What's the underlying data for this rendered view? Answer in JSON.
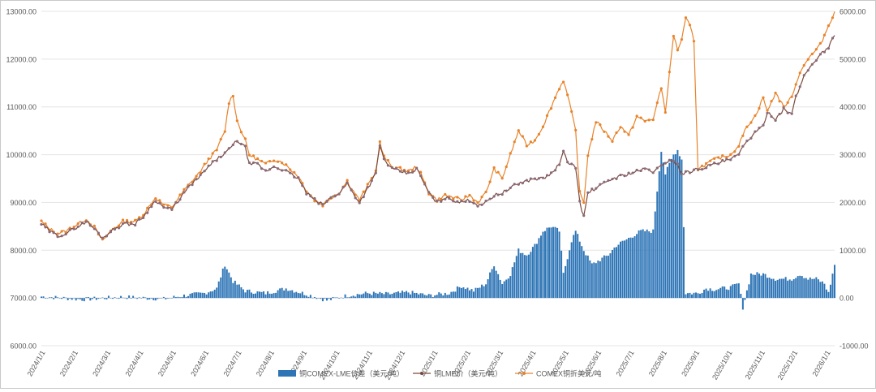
{
  "chart_data": {
    "type": "bar+line",
    "title": "",
    "y_left": {
      "min": 6000,
      "max": 13000,
      "step": 1000,
      "ticks": [
        "6000.00",
        "7000.00",
        "8000.00",
        "9000.00",
        "10000.00",
        "11000.00",
        "12000.00",
        "13000.00"
      ]
    },
    "y_right": {
      "min": -1000,
      "max": 6000,
      "step": 1000,
      "ticks": [
        "-1000.00",
        "0.00",
        "1000.00",
        "2000.00",
        "3000.00",
        "4000.00",
        "5000.00",
        "6000.00"
      ]
    },
    "x_ticks": [
      "2024/1/1",
      "2024/2/1",
      "2024/3/1",
      "2024/4/1",
      "2024/5/1",
      "2024/6/1",
      "2024/7/1",
      "2024/8/1",
      "2024/9/1",
      "2024/10/1",
      "2024/11/1",
      "2024/12/1",
      "2025/1/1",
      "2025/2/1",
      "2025/3/1",
      "2025/4/1",
      "2025/5/1",
      "2025/6/1",
      "2025/7/1",
      "2025/8/1",
      "2025/9/1",
      "2025/10/1",
      "2025/11/1",
      "2025/12/1",
      "2026/1/1"
    ],
    "legend": [
      {
        "name": "铜COMEX-LME价差（美元/吨）",
        "type": "bar",
        "axis": "right",
        "color": "#2e75b6"
      },
      {
        "name": "铜LME价（美元/吨）",
        "type": "line",
        "axis": "left",
        "color": "#7b4a3c"
      },
      {
        "name": "COMEX铜折美元/吨",
        "type": "line",
        "axis": "left",
        "color": "#e8832a"
      }
    ],
    "series_lme_anchors": [
      [
        0,
        8550
      ],
      [
        4,
        8400
      ],
      [
        8,
        8300
      ],
      [
        12,
        8350
      ],
      [
        18,
        8500
      ],
      [
        22,
        8600
      ],
      [
        26,
        8450
      ],
      [
        30,
        8250
      ],
      [
        34,
        8400
      ],
      [
        40,
        8550
      ],
      [
        46,
        8550
      ],
      [
        50,
        8700
      ],
      [
        56,
        9050
      ],
      [
        60,
        8900
      ],
      [
        64,
        8850
      ],
      [
        70,
        9200
      ],
      [
        74,
        9400
      ],
      [
        78,
        9550
      ],
      [
        82,
        9750
      ],
      [
        86,
        9900
      ],
      [
        92,
        10100
      ],
      [
        96,
        10300
      ],
      [
        100,
        10150
      ],
      [
        102,
        9800
      ],
      [
        106,
        9800
      ],
      [
        110,
        9650
      ],
      [
        114,
        9750
      ],
      [
        118,
        9700
      ],
      [
        122,
        9600
      ],
      [
        126,
        9500
      ],
      [
        130,
        9200
      ],
      [
        134,
        9050
      ],
      [
        138,
        8950
      ],
      [
        142,
        9100
      ],
      [
        146,
        9200
      ],
      [
        150,
        9400
      ],
      [
        152,
        9250
      ],
      [
        156,
        9000
      ],
      [
        160,
        9300
      ],
      [
        164,
        9600
      ],
      [
        166,
        10200
      ],
      [
        168,
        9900
      ],
      [
        172,
        9700
      ],
      [
        176,
        9650
      ],
      [
        180,
        9600
      ],
      [
        184,
        9700
      ],
      [
        186,
        9550
      ],
      [
        190,
        9200
      ],
      [
        194,
        9000
      ],
      [
        198,
        9100
      ],
      [
        202,
        9050
      ],
      [
        206,
        9000
      ],
      [
        210,
        9050
      ],
      [
        214,
        8950
      ],
      [
        218,
        9000
      ],
      [
        222,
        9150
      ],
      [
        226,
        9200
      ],
      [
        230,
        9300
      ],
      [
        234,
        9400
      ],
      [
        238,
        9450
      ],
      [
        242,
        9500
      ],
      [
        246,
        9500
      ],
      [
        250,
        9600
      ],
      [
        254,
        9800
      ],
      [
        256,
        10050
      ],
      [
        258,
        9850
      ],
      [
        262,
        9750
      ],
      [
        264,
        9000
      ],
      [
        266,
        8700
      ],
      [
        268,
        9200
      ],
      [
        272,
        9300
      ],
      [
        276,
        9400
      ],
      [
        280,
        9500
      ],
      [
        284,
        9550
      ],
      [
        288,
        9600
      ],
      [
        292,
        9650
      ],
      [
        296,
        9700
      ],
      [
        300,
        9650
      ],
      [
        304,
        9750
      ],
      [
        308,
        9900
      ],
      [
        312,
        9800
      ],
      [
        314,
        9600
      ],
      [
        318,
        9650
      ],
      [
        322,
        9700
      ],
      [
        326,
        9750
      ],
      [
        330,
        9800
      ],
      [
        334,
        9850
      ],
      [
        338,
        9900
      ],
      [
        342,
        10000
      ],
      [
        346,
        10300
      ],
      [
        350,
        10450
      ],
      [
        354,
        10600
      ],
      [
        356,
        10900
      ],
      [
        360,
        10750
      ],
      [
        364,
        10950
      ],
      [
        368,
        10850
      ],
      [
        370,
        11200
      ],
      [
        374,
        11650
      ],
      [
        378,
        11900
      ],
      [
        382,
        12100
      ],
      [
        386,
        12250
      ],
      [
        389,
        12500
      ]
    ],
    "series_comex_anchors": [
      [
        0,
        8600
      ],
      [
        4,
        8450
      ],
      [
        8,
        8350
      ],
      [
        12,
        8400
      ],
      [
        18,
        8550
      ],
      [
        22,
        8650
      ],
      [
        26,
        8480
      ],
      [
        30,
        8200
      ],
      [
        34,
        8400
      ],
      [
        40,
        8600
      ],
      [
        46,
        8600
      ],
      [
        50,
        8750
      ],
      [
        56,
        9100
      ],
      [
        60,
        8950
      ],
      [
        64,
        8900
      ],
      [
        70,
        9250
      ],
      [
        74,
        9450
      ],
      [
        78,
        9650
      ],
      [
        82,
        9900
      ],
      [
        86,
        10100
      ],
      [
        90,
        10500
      ],
      [
        92,
        11100
      ],
      [
        94,
        11250
      ],
      [
        96,
        10700
      ],
      [
        100,
        10300
      ],
      [
        102,
        10000
      ],
      [
        106,
        9900
      ],
      [
        110,
        9800
      ],
      [
        114,
        9900
      ],
      [
        118,
        9850
      ],
      [
        122,
        9700
      ],
      [
        126,
        9550
      ],
      [
        130,
        9250
      ],
      [
        134,
        9050
      ],
      [
        138,
        8950
      ],
      [
        142,
        9100
      ],
      [
        146,
        9200
      ],
      [
        150,
        9450
      ],
      [
        152,
        9300
      ],
      [
        156,
        9050
      ],
      [
        160,
        9350
      ],
      [
        164,
        9650
      ],
      [
        166,
        10250
      ],
      [
        168,
        9950
      ],
      [
        172,
        9750
      ],
      [
        176,
        9700
      ],
      [
        180,
        9650
      ],
      [
        184,
        9750
      ],
      [
        186,
        9600
      ],
      [
        190,
        9200
      ],
      [
        194,
        9050
      ],
      [
        198,
        9150
      ],
      [
        202,
        9100
      ],
      [
        206,
        9050
      ],
      [
        210,
        9150
      ],
      [
        214,
        9000
      ],
      [
        218,
        9200
      ],
      [
        222,
        9700
      ],
      [
        226,
        9500
      ],
      [
        230,
        10000
      ],
      [
        234,
        10500
      ],
      [
        238,
        10200
      ],
      [
        242,
        10300
      ],
      [
        246,
        10600
      ],
      [
        250,
        11000
      ],
      [
        254,
        11400
      ],
      [
        256,
        11550
      ],
      [
        258,
        11250
      ],
      [
        262,
        10500
      ],
      [
        264,
        9200
      ],
      [
        266,
        9000
      ],
      [
        268,
        10000
      ],
      [
        272,
        10700
      ],
      [
        276,
        10500
      ],
      [
        280,
        10300
      ],
      [
        284,
        10600
      ],
      [
        288,
        10400
      ],
      [
        292,
        10800
      ],
      [
        296,
        10700
      ],
      [
        300,
        10750
      ],
      [
        304,
        11400
      ],
      [
        306,
        10900
      ],
      [
        310,
        12500
      ],
      [
        312,
        12200
      ],
      [
        314,
        12400
      ],
      [
        316,
        12850
      ],
      [
        318,
        12700
      ],
      [
        320,
        12400
      ],
      [
        322,
        9700
      ],
      [
        326,
        9800
      ],
      [
        330,
        9900
      ],
      [
        334,
        9950
      ],
      [
        338,
        10000
      ],
      [
        342,
        10200
      ],
      [
        346,
        10600
      ],
      [
        350,
        10800
      ],
      [
        354,
        11200
      ],
      [
        356,
        10900
      ],
      [
        360,
        11300
      ],
      [
        364,
        11000
      ],
      [
        368,
        11200
      ],
      [
        370,
        11500
      ],
      [
        374,
        11900
      ],
      [
        378,
        12100
      ],
      [
        382,
        12300
      ],
      [
        386,
        12700
      ],
      [
        389,
        13000
      ]
    ],
    "bars_spread_anchors": [
      [
        0,
        30
      ],
      [
        20,
        -30
      ],
      [
        40,
        20
      ],
      [
        60,
        -20
      ],
      [
        70,
        50
      ],
      [
        80,
        100
      ],
      [
        86,
        200
      ],
      [
        90,
        700
      ],
      [
        94,
        350
      ],
      [
        100,
        150
      ],
      [
        110,
        100
      ],
      [
        120,
        200
      ],
      [
        130,
        80
      ],
      [
        140,
        -50
      ],
      [
        150,
        50
      ],
      [
        160,
        100
      ],
      [
        170,
        80
      ],
      [
        180,
        120
      ],
      [
        190,
        50
      ],
      [
        200,
        100
      ],
      [
        206,
        250
      ],
      [
        212,
        150
      ],
      [
        218,
        300
      ],
      [
        222,
        700
      ],
      [
        226,
        300
      ],
      [
        230,
        500
      ],
      [
        234,
        1000
      ],
      [
        238,
        900
      ],
      [
        242,
        1100
      ],
      [
        246,
        1400
      ],
      [
        250,
        1500
      ],
      [
        254,
        1400
      ],
      [
        256,
        500
      ],
      [
        260,
        1200
      ],
      [
        262,
        1400
      ],
      [
        266,
        1000
      ],
      [
        270,
        700
      ],
      [
        274,
        800
      ],
      [
        278,
        900
      ],
      [
        282,
        1100
      ],
      [
        286,
        1200
      ],
      [
        290,
        1300
      ],
      [
        294,
        1400
      ],
      [
        300,
        1400
      ],
      [
        304,
        3100
      ],
      [
        306,
        2600
      ],
      [
        310,
        3000
      ],
      [
        312,
        3100
      ],
      [
        314,
        2900
      ],
      [
        316,
        100
      ],
      [
        322,
        100
      ],
      [
        326,
        200
      ],
      [
        330,
        180
      ],
      [
        334,
        200
      ],
      [
        338,
        220
      ],
      [
        342,
        300
      ],
      [
        344,
        -200
      ],
      [
        348,
        500
      ],
      [
        354,
        500
      ],
      [
        360,
        400
      ],
      [
        364,
        400
      ],
      [
        368,
        400
      ],
      [
        372,
        500
      ],
      [
        376,
        400
      ],
      [
        380,
        400
      ],
      [
        384,
        300
      ],
      [
        386,
        100
      ],
      [
        389,
        700
      ]
    ]
  }
}
